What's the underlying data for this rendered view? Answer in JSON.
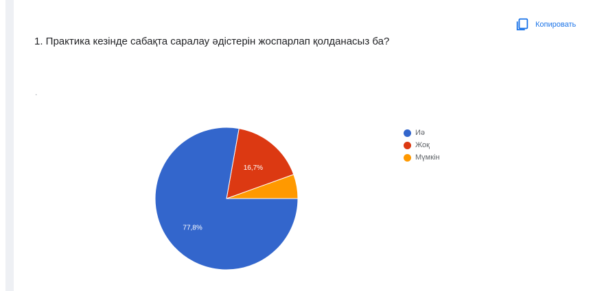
{
  "page": {
    "top_text": "... , ... ... , ... ..."
  },
  "question": {
    "text": "1.  Практика кезінде сабақта саралау әдістерін жоспарлап қолданасыз ба?",
    "subtext": "."
  },
  "copy_button": {
    "label": "Копировать"
  },
  "colors": {
    "accent": "#1a73e8"
  },
  "chart_data": {
    "type": "pie",
    "title": "",
    "slices": [
      {
        "label": "Иә",
        "value": 77.8,
        "color": "#3366cc",
        "data_label": "77,8%"
      },
      {
        "label": "Жоқ",
        "value": 16.7,
        "color": "#dc3912",
        "data_label": "16,7%"
      },
      {
        "label": "Мүмкін",
        "value": 5.5,
        "color": "#ff9900",
        "data_label": ""
      }
    ],
    "legend": "right"
  }
}
